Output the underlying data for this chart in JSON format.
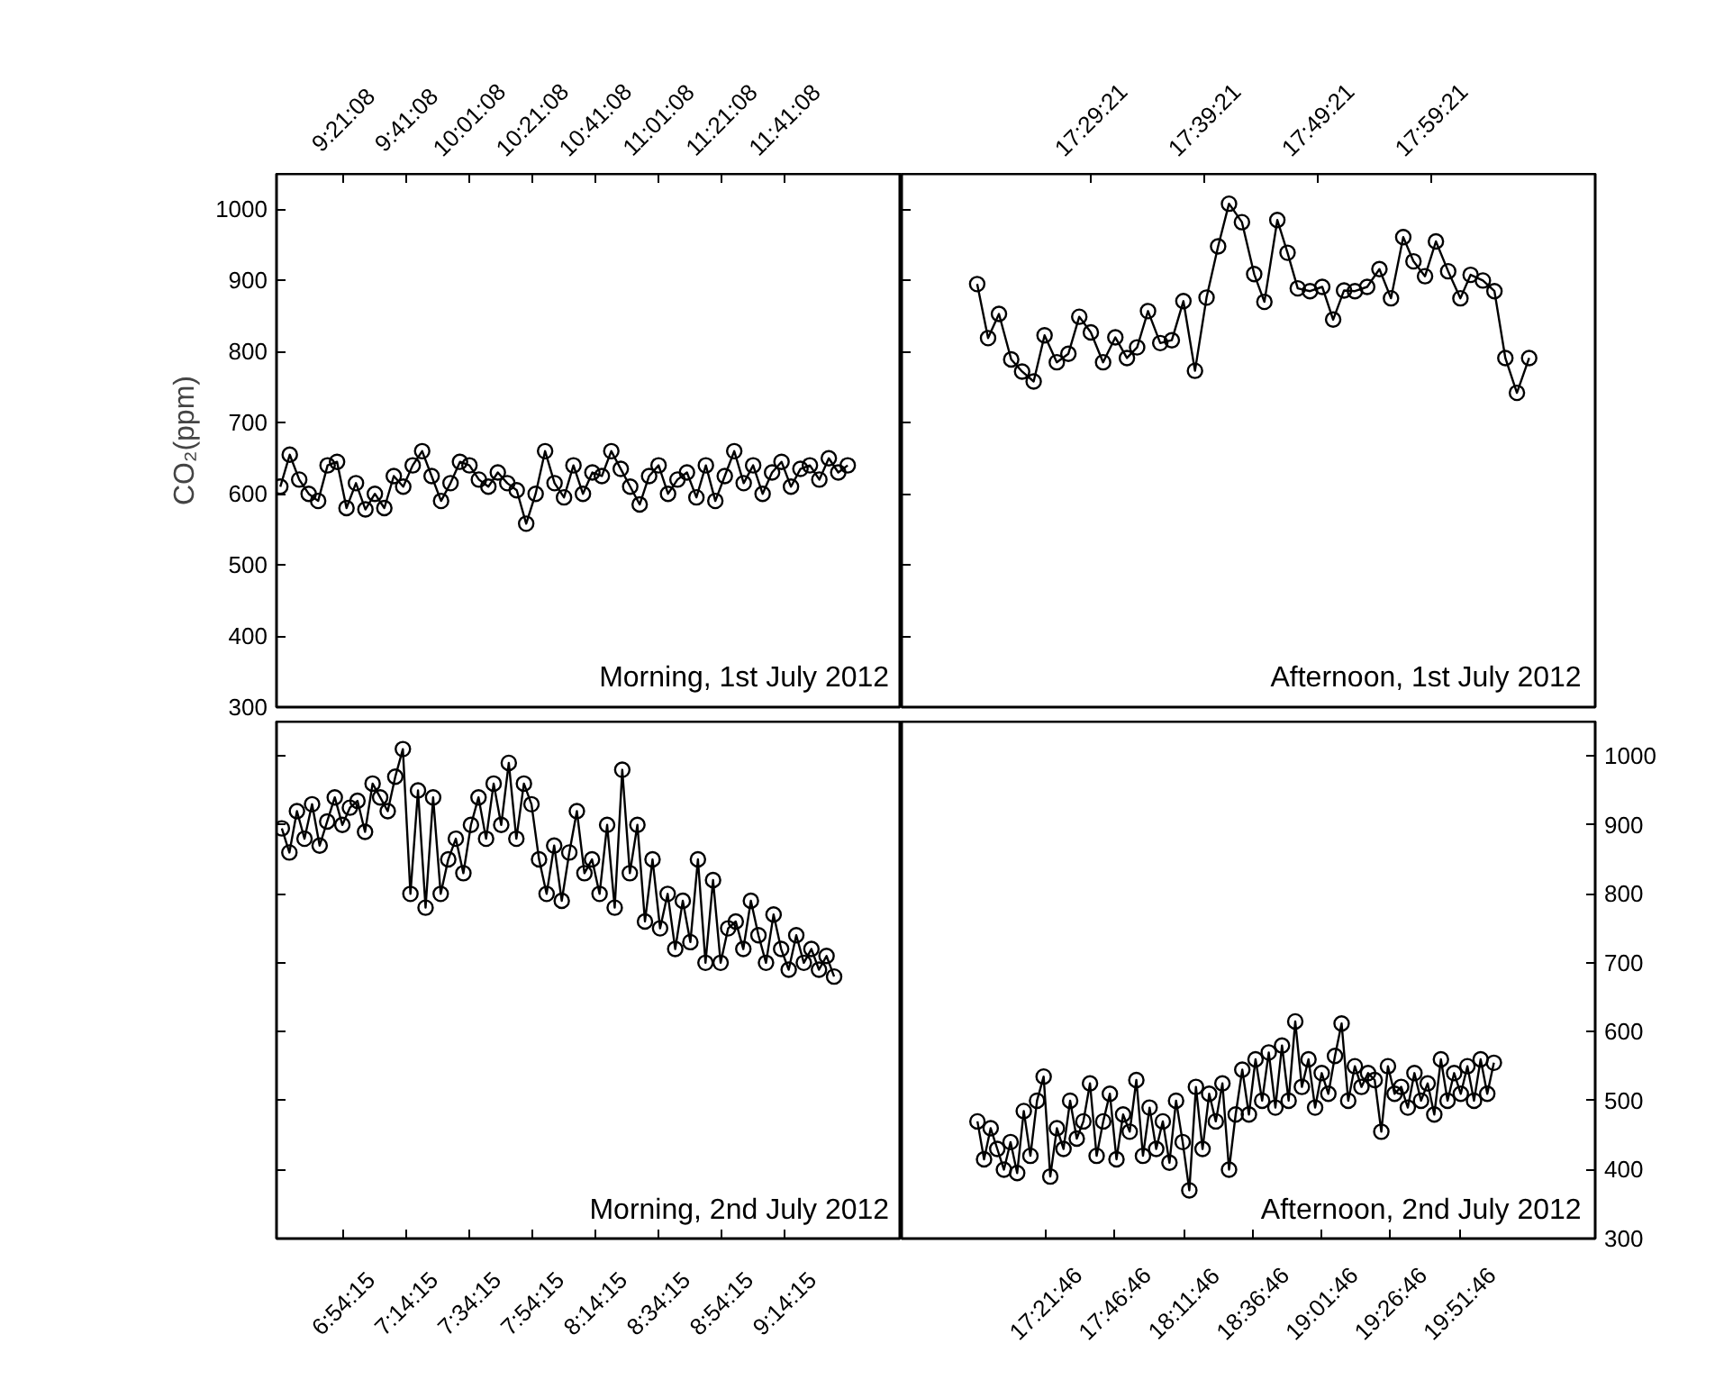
{
  "chart_data": [
    {
      "type": "line",
      "ylabel": "CO₂(ppm)",
      "annotations": [
        "Morning, 1st July 2012"
      ],
      "marker": "circle",
      "line_style": "solid",
      "grid": false,
      "xlim": [
        9.0,
        12.305
      ],
      "ylim": [
        300,
        1050
      ],
      "xticks": [
        {
          "value": 9.35222,
          "label": "9:21:08"
        },
        {
          "value": 9.68556,
          "label": "9:41:08"
        },
        {
          "value": 10.01889,
          "label": "10:01:08"
        },
        {
          "value": 10.35222,
          "label": "10:21:08"
        },
        {
          "value": 10.68556,
          "label": "10:41:08"
        },
        {
          "value": 11.01889,
          "label": "11:01:08"
        },
        {
          "value": 11.35222,
          "label": "11:21:08"
        },
        {
          "value": 11.68556,
          "label": "11:41:08"
        }
      ],
      "yticks": [
        300,
        400,
        500,
        600,
        700,
        800,
        900,
        1000
      ],
      "series": [
        {
          "color": "#000000",
          "x": [
            9.02,
            9.07,
            9.12,
            9.17,
            9.22,
            9.27,
            9.32,
            9.37,
            9.42,
            9.47,
            9.52,
            9.57,
            9.62,
            9.67,
            9.72,
            9.77,
            9.82,
            9.87,
            9.92,
            9.97,
            10.02,
            10.07,
            10.12,
            10.17,
            10.22,
            10.27,
            10.32,
            10.37,
            10.42,
            10.47,
            10.52,
            10.57,
            10.62,
            10.67,
            10.72,
            10.77,
            10.82,
            10.87,
            10.92,
            10.97,
            11.02,
            11.07,
            11.12,
            11.17,
            11.22,
            11.27,
            11.32,
            11.37,
            11.42,
            11.47,
            11.52,
            11.57,
            11.62,
            11.67,
            11.72,
            11.77,
            11.82,
            11.87,
            11.92,
            11.97,
            12.02
          ],
          "values": [
            610,
            655,
            620,
            600,
            590,
            640,
            645,
            580,
            615,
            578,
            600,
            580,
            625,
            610,
            640,
            660,
            625,
            590,
            615,
            645,
            640,
            620,
            610,
            630,
            615,
            605,
            558,
            600,
            660,
            615,
            595,
            640,
            600,
            630,
            625,
            660,
            635,
            610,
            585,
            625,
            640,
            600,
            620,
            630,
            595,
            640,
            590,
            625,
            660,
            615,
            640,
            600,
            630,
            645,
            610,
            635,
            640,
            620,
            650,
            630,
            640
          ]
        }
      ]
    },
    {
      "type": "line",
      "annotations": [
        "Afternoon, 1st July 2012"
      ],
      "marker": "circle",
      "line_style": "solid",
      "grid": false,
      "tick_labels": "x",
      "xlim": [
        17.211,
        18.23
      ],
      "ylim": [
        300,
        1050
      ],
      "xticks": [
        {
          "value": 17.48917,
          "label": "17:29:21"
        },
        {
          "value": 17.65583,
          "label": "17:39:21"
        },
        {
          "value": 17.8225,
          "label": "17:49:21"
        },
        {
          "value": 17.98917,
          "label": "17:59:21"
        }
      ],
      "yticks": [
        300,
        400,
        500,
        600,
        700,
        800,
        900,
        1000
      ],
      "series": [
        {
          "color": "#000000",
          "x": [
            17.322,
            17.338,
            17.354,
            17.372,
            17.388,
            17.405,
            17.421,
            17.439,
            17.456,
            17.472,
            17.489,
            17.507,
            17.525,
            17.542,
            17.557,
            17.573,
            17.591,
            17.608,
            17.625,
            17.642,
            17.659,
            17.676,
            17.692,
            17.711,
            17.729,
            17.744,
            17.763,
            17.778,
            17.793,
            17.811,
            17.829,
            17.845,
            17.861,
            17.877,
            17.895,
            17.913,
            17.93,
            17.948,
            17.963,
            17.98,
            17.996,
            18.014,
            18.032,
            18.047,
            18.065,
            18.082,
            18.098,
            18.115,
            18.133
          ],
          "values": [
            895,
            819,
            853,
            789,
            772,
            758,
            823,
            785,
            797,
            849,
            827,
            785,
            820,
            791,
            806,
            857,
            812,
            816,
            871,
            773,
            876,
            948,
            1008,
            982,
            909,
            870,
            985,
            939,
            889,
            885,
            891,
            845,
            886,
            885,
            891,
            916,
            875,
            961,
            927,
            906,
            955,
            913,
            875,
            908,
            900,
            885,
            791,
            742,
            791
          ]
        }
      ]
    },
    {
      "type": "line",
      "annotations": [
        "Morning, 2nd July 2012"
      ],
      "marker": "circle",
      "line_style": "solid",
      "grid": false,
      "tick_labels": "x",
      "xlim": [
        6.552,
        9.857
      ],
      "ylim": [
        300,
        1050
      ],
      "xticks": [
        {
          "value": 6.90417,
          "label": "6:54:15"
        },
        {
          "value": 7.2375,
          "label": "7:14:15"
        },
        {
          "value": 7.57083,
          "label": "7:34:15"
        },
        {
          "value": 7.90417,
          "label": "7:54:15"
        },
        {
          "value": 8.2375,
          "label": "8:14:15"
        },
        {
          "value": 8.57083,
          "label": "8:34:15"
        },
        {
          "value": 8.90417,
          "label": "8:54:15"
        },
        {
          "value": 9.2375,
          "label": "9:14:15"
        }
      ],
      "yticks": [
        300,
        400,
        500,
        600,
        700,
        800,
        900,
        1000
      ],
      "series": [
        {
          "color": "#000000",
          "x": [
            6.58,
            6.62,
            6.66,
            6.7,
            6.74,
            6.78,
            6.82,
            6.86,
            6.9,
            6.94,
            6.98,
            7.02,
            7.06,
            7.1,
            7.14,
            7.18,
            7.22,
            7.26,
            7.3,
            7.34,
            7.38,
            7.42,
            7.46,
            7.5,
            7.54,
            7.58,
            7.62,
            7.66,
            7.7,
            7.74,
            7.78,
            7.82,
            7.86,
            7.9,
            7.94,
            7.98,
            8.02,
            8.06,
            8.1,
            8.14,
            8.18,
            8.22,
            8.26,
            8.3,
            8.34,
            8.38,
            8.42,
            8.46,
            8.5,
            8.54,
            8.58,
            8.62,
            8.66,
            8.7,
            8.74,
            8.78,
            8.82,
            8.86,
            8.9,
            8.94,
            8.98,
            9.02,
            9.06,
            9.1,
            9.14,
            9.18,
            9.22,
            9.26,
            9.3,
            9.34,
            9.38,
            9.42,
            9.46,
            9.5
          ],
          "values": [
            895,
            860,
            920,
            880,
            930,
            870,
            905,
            940,
            900,
            925,
            935,
            890,
            960,
            940,
            920,
            970,
            1010,
            800,
            950,
            780,
            940,
            800,
            850,
            880,
            830,
            900,
            940,
            880,
            960,
            900,
            990,
            880,
            960,
            930,
            850,
            800,
            870,
            790,
            860,
            920,
            830,
            850,
            800,
            900,
            780,
            980,
            830,
            900,
            760,
            850,
            750,
            800,
            720,
            790,
            730,
            850,
            700,
            820,
            700,
            750,
            760,
            720,
            790,
            740,
            700,
            770,
            720,
            690,
            740,
            700,
            720,
            690,
            710,
            680
          ]
        }
      ]
    },
    {
      "type": "line",
      "annotations": [
        "Afternoon, 2nd July 2012"
      ],
      "marker": "circle",
      "line_style": "solid",
      "grid": false,
      "xlim": [
        16.492,
        20.682
      ],
      "ylim": [
        300,
        1050
      ],
      "xticks": [
        {
          "value": 17.36278,
          "label": "17:21:46"
        },
        {
          "value": 17.77944,
          "label": "17:46:46"
        },
        {
          "value": 18.19611,
          "label": "18:11:46"
        },
        {
          "value": 18.61278,
          "label": "18:36:46"
        },
        {
          "value": 19.02944,
          "label": "19:01:46"
        },
        {
          "value": 19.44611,
          "label": "19:26:46"
        },
        {
          "value": 19.86278,
          "label": "19:51:46"
        }
      ],
      "yticks": [
        300,
        400,
        500,
        600,
        700,
        800,
        900,
        1000
      ],
      "series": [
        {
          "color": "#000000",
          "x": [
            16.95,
            16.99,
            17.03,
            17.07,
            17.11,
            17.15,
            17.19,
            17.23,
            17.27,
            17.31,
            17.35,
            17.39,
            17.43,
            17.47,
            17.51,
            17.55,
            17.59,
            17.63,
            17.67,
            17.71,
            17.75,
            17.79,
            17.83,
            17.87,
            17.91,
            17.95,
            17.99,
            18.03,
            18.07,
            18.11,
            18.15,
            18.19,
            18.23,
            18.27,
            18.31,
            18.35,
            18.39,
            18.43,
            18.47,
            18.51,
            18.55,
            18.59,
            18.63,
            18.67,
            18.71,
            18.75,
            18.79,
            18.83,
            18.87,
            18.91,
            18.95,
            18.99,
            19.03,
            19.07,
            19.11,
            19.15,
            19.19,
            19.23,
            19.27,
            19.31,
            19.35,
            19.39,
            19.43,
            19.47,
            19.51,
            19.55,
            19.59,
            19.63,
            19.67,
            19.71,
            19.75,
            19.79,
            19.83,
            19.87,
            19.91,
            19.95,
            19.99,
            20.03,
            20.07
          ],
          "values": [
            470,
            415,
            460,
            430,
            400,
            440,
            395,
            485,
            420,
            500,
            535,
            390,
            460,
            430,
            500,
            445,
            470,
            525,
            420,
            470,
            510,
            415,
            480,
            455,
            530,
            420,
            490,
            430,
            470,
            410,
            500,
            440,
            370,
            520,
            430,
            510,
            470,
            525,
            400,
            480,
            545,
            480,
            560,
            500,
            570,
            490,
            580,
            500,
            615,
            520,
            560,
            490,
            540,
            510,
            565,
            612,
            500,
            550,
            520,
            540,
            530,
            455,
            550,
            510,
            520,
            490,
            540,
            500,
            525,
            480,
            560,
            500,
            540,
            510,
            550,
            500,
            560,
            510,
            555
          ]
        }
      ]
    }
  ]
}
